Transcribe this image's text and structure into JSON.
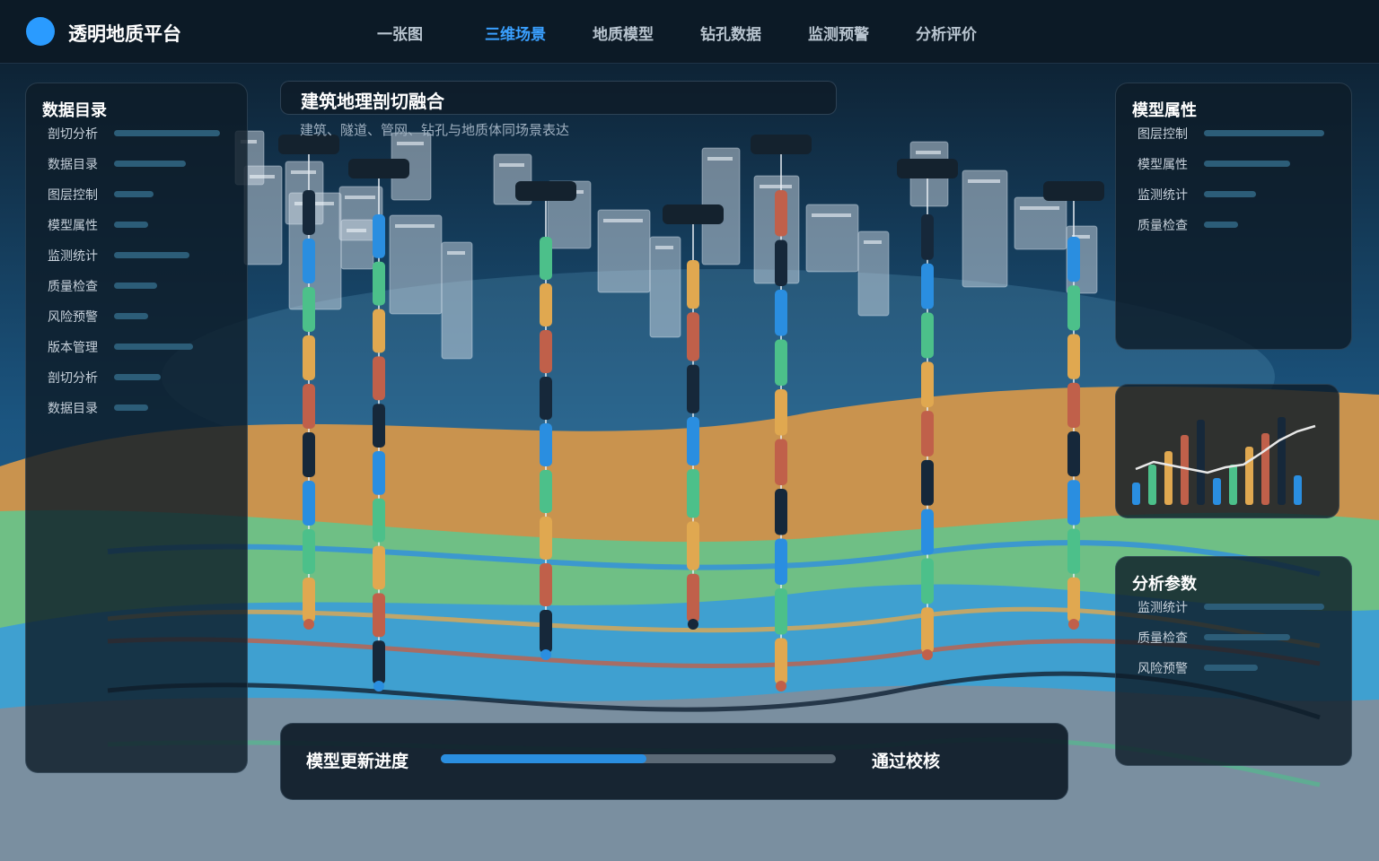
{
  "header": {
    "title": "透明地质平台",
    "nav": [
      "一张图",
      "三维场景",
      "地质模型",
      "钻孔数据",
      "监测预警",
      "分析评价"
    ],
    "active": 1
  },
  "scene": {
    "title": "建筑地理剖切融合",
    "subtitle": "建筑、隧道、管网、钻孔与地质体同场景表达"
  },
  "left_panel": {
    "title": "数据目录",
    "items": [
      "剖切分析",
      "数据目录",
      "图层控制",
      "模型属性",
      "监测统计",
      "质量检查",
      "风险预警",
      "版本管理",
      "剖切分析",
      "数据目录"
    ]
  },
  "right_panels": [
    {
      "title": "模型属性",
      "items": [
        "图层控制",
        "模型属性",
        "监测统计",
        "质量检查"
      ]
    },
    {
      "title": "分析参数",
      "items": [
        "监测统计",
        "质量检查",
        "风险预警"
      ]
    }
  ],
  "mini_chart": {
    "ylim": [
      0,
      100
    ],
    "bars": [
      25,
      45,
      60,
      78,
      95,
      30,
      45,
      65,
      80,
      98,
      33
    ],
    "line": [
      40,
      48,
      44,
      40,
      36,
      42,
      45,
      58,
      72,
      82,
      88
    ]
  },
  "progress": {
    "label": "模型更新进度",
    "value": 52,
    "status": "通过校核"
  }
}
